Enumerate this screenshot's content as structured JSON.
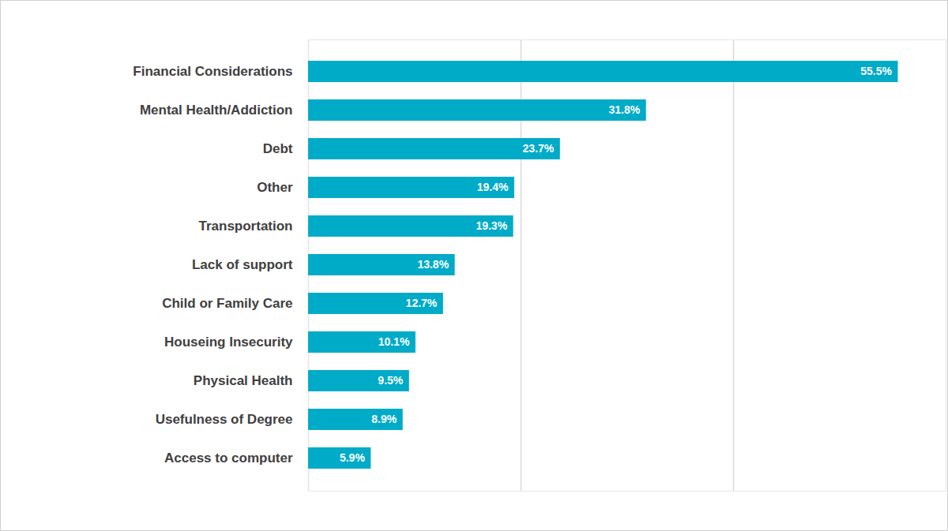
{
  "chart_data": {
    "type": "bar",
    "orientation": "horizontal",
    "categories": [
      "Financial Considerations",
      "Mental Health/Addiction",
      "Debt",
      "Other",
      "Transportation",
      "Lack of support",
      "Child or Family Care",
      "Houseing Insecurity",
      "Physical Health",
      "Usefulness of Degree",
      "Access to computer"
    ],
    "values": [
      55.5,
      31.8,
      23.7,
      19.4,
      19.3,
      13.8,
      12.7,
      10.1,
      9.5,
      8.9,
      5.9
    ],
    "value_labels": [
      "55.5%",
      "31.8%",
      "23.7%",
      "19.4%",
      "19.3%",
      "13.8%",
      "12.7%",
      "10.1%",
      "9.5%",
      "8.9%",
      "5.9%"
    ],
    "color": "#00abc8",
    "xlim": [
      0,
      60
    ],
    "xticks": [
      0,
      20,
      40
    ],
    "grid": true,
    "data_labels": true,
    "tick_labels": "y"
  }
}
